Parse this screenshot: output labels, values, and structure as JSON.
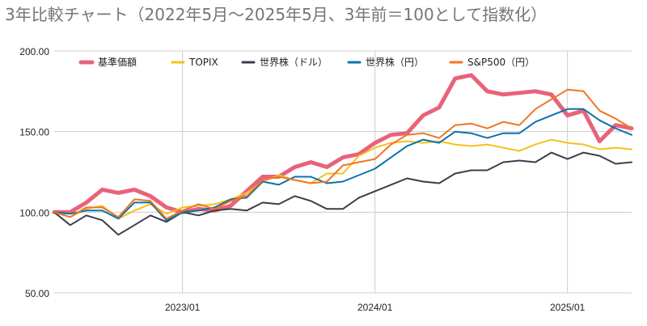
{
  "chart_data": {
    "type": "line",
    "title": "3年比較チャート（2022年5月～2025年5月、3年前＝100として指数化）",
    "xlabel": "",
    "ylabel": "",
    "ylim": [
      50,
      200
    ],
    "yticks": [
      "50.00",
      "100.00",
      "150.00",
      "200.00"
    ],
    "yticks_values": [
      50,
      100,
      150,
      200
    ],
    "x": [
      "2022-05",
      "2022-06",
      "2022-07",
      "2022-08",
      "2022-09",
      "2022-10",
      "2022-11",
      "2022-12",
      "2023-01",
      "2023-02",
      "2023-03",
      "2023-04",
      "2023-05",
      "2023-06",
      "2023-07",
      "2023-08",
      "2023-09",
      "2023-10",
      "2023-11",
      "2023-12",
      "2024-01",
      "2024-02",
      "2024-03",
      "2024-04",
      "2024-05",
      "2024-06",
      "2024-07",
      "2024-08",
      "2024-09",
      "2024-10",
      "2024-11",
      "2024-12",
      "2025-01",
      "2025-02",
      "2025-03",
      "2025-04",
      "2025-05"
    ],
    "xticks": [
      {
        "label": "2023/01",
        "x": "2023-01"
      },
      {
        "label": "2024/01",
        "x": "2024-01"
      },
      {
        "label": "2025/01",
        "x": "2025-01"
      }
    ],
    "grid": true,
    "legend_position": "top",
    "series": [
      {
        "name": "基準価額",
        "color": "#e8637a",
        "width": 5,
        "values": [
          100,
          100,
          106,
          114,
          112,
          114,
          110,
          103,
          100,
          102,
          101,
          104,
          113,
          122,
          122,
          128,
          131,
          128,
          134,
          136,
          143,
          148,
          149,
          160,
          165,
          183,
          185,
          175,
          173,
          174,
          175,
          173,
          160,
          163,
          144,
          154,
          152
        ]
      },
      {
        "name": "TOPIX",
        "color": "#f4c21a",
        "width": 2,
        "values": [
          100,
          97,
          102,
          104,
          96,
          101,
          105,
          99,
          103,
          104,
          105,
          108,
          112,
          119,
          123,
          120,
          118,
          124,
          124,
          135,
          140,
          143,
          144,
          143,
          144,
          142,
          141,
          142,
          140,
          138,
          142,
          145,
          143,
          142,
          139,
          140,
          139
        ]
      },
      {
        "name": "世界株（ドル）",
        "color": "#3f3c4c",
        "width": 2,
        "values": [
          100,
          92,
          98,
          95,
          86,
          92,
          98,
          94,
          100,
          98,
          101,
          102,
          101,
          106,
          105,
          110,
          107,
          102,
          102,
          109,
          113,
          117,
          121,
          119,
          118,
          124,
          126,
          126,
          131,
          132,
          131,
          137,
          133,
          137,
          135,
          130,
          131
        ]
      },
      {
        "name": "世界株（円）",
        "color": "#0a73ad",
        "width": 2,
        "values": [
          100,
          99,
          101,
          101,
          96,
          106,
          106,
          95,
          100,
          101,
          103,
          108,
          109,
          119,
          117,
          122,
          122,
          118,
          119,
          123,
          127,
          134,
          141,
          145,
          143,
          150,
          149,
          146,
          149,
          149,
          156,
          160,
          164,
          164,
          157,
          152,
          148
        ]
      },
      {
        "name": "S&P500（円）",
        "color": "#f07525",
        "width": 2,
        "values": [
          100,
          97,
          103,
          103,
          97,
          108,
          107,
          96,
          101,
          105,
          102,
          107,
          110,
          120,
          122,
          120,
          118,
          119,
          129,
          131,
          133,
          142,
          148,
          149,
          146,
          154,
          155,
          152,
          156,
          154,
          164,
          170,
          176,
          175,
          163,
          158,
          152
        ]
      }
    ]
  }
}
